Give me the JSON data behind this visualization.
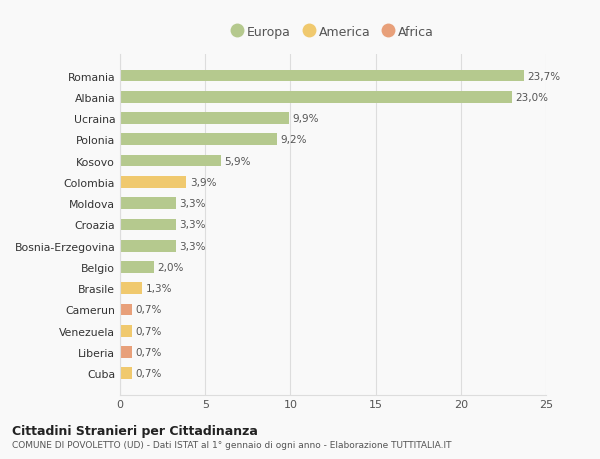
{
  "categories": [
    "Romania",
    "Albania",
    "Ucraina",
    "Polonia",
    "Kosovo",
    "Colombia",
    "Moldova",
    "Croazia",
    "Bosnia-Erzegovina",
    "Belgio",
    "Brasile",
    "Camerun",
    "Venezuela",
    "Liberia",
    "Cuba"
  ],
  "values": [
    23.7,
    23.0,
    9.9,
    9.2,
    5.9,
    3.9,
    3.3,
    3.3,
    3.3,
    2.0,
    1.3,
    0.7,
    0.7,
    0.7,
    0.7
  ],
  "labels": [
    "23,7%",
    "23,0%",
    "9,9%",
    "9,2%",
    "5,9%",
    "3,9%",
    "3,3%",
    "3,3%",
    "3,3%",
    "2,0%",
    "1,3%",
    "0,7%",
    "0,7%",
    "0,7%",
    "0,7%"
  ],
  "continents": [
    "Europa",
    "Europa",
    "Europa",
    "Europa",
    "Europa",
    "America",
    "Europa",
    "Europa",
    "Europa",
    "Europa",
    "America",
    "Africa",
    "America",
    "Africa",
    "America"
  ],
  "colors": {
    "Europa": "#b5c98e",
    "America": "#f0c96e",
    "Africa": "#e8a07a"
  },
  "legend_entries": [
    "Europa",
    "America",
    "Africa"
  ],
  "xlim": [
    0,
    25
  ],
  "xticks": [
    0,
    5,
    10,
    15,
    20,
    25
  ],
  "title1": "Cittadini Stranieri per Cittadinanza",
  "title2": "COMUNE DI POVOLETTO (UD) - Dati ISTAT al 1° gennaio di ogni anno - Elaborazione TUTTITALIA.IT",
  "background_color": "#f9f9f9",
  "grid_color": "#dddddd",
  "bar_height": 0.55
}
